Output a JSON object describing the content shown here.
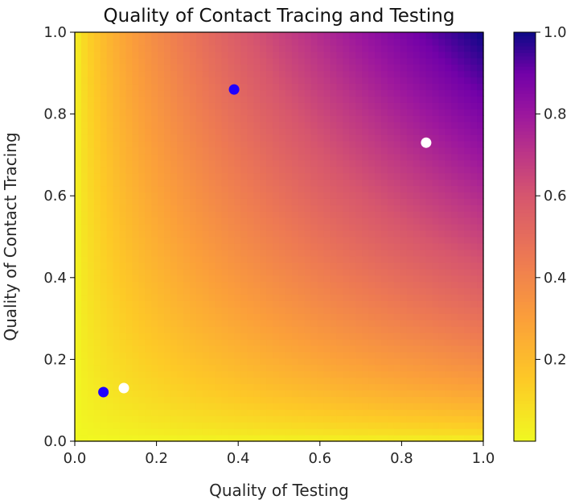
{
  "chart_data": {
    "type": "heatmap",
    "title": "Quality of Contact Tracing and Testing",
    "xlabel": "Quality of Testing",
    "ylabel": "Quality of Contact Tracing",
    "xlim": [
      0.0,
      1.0
    ],
    "ylim": [
      0.0,
      1.0
    ],
    "x_ticks": [
      "0.0",
      "0.2",
      "0.4",
      "0.6",
      "0.8",
      "1.0"
    ],
    "y_ticks": [
      "0.0",
      "0.2",
      "0.4",
      "0.6",
      "0.8",
      "1.0"
    ],
    "colormap": "plasma_r",
    "colorbar": {
      "range": [
        0.0,
        1.0
      ],
      "ticks": [
        "0.2",
        "0.4",
        "0.6",
        "0.8",
        "1.0"
      ],
      "placement": "right"
    },
    "field": "value ≈ (testing × tracing)^0.6",
    "points": [
      {
        "x": 0.07,
        "y": 0.12,
        "color": "#1f00ff"
      },
      {
        "x": 0.39,
        "y": 0.86,
        "color": "#1f00ff"
      },
      {
        "x": 0.12,
        "y": 0.13,
        "color": "#ffffff"
      },
      {
        "x": 0.86,
        "y": 0.73,
        "color": "#ffffff"
      }
    ],
    "grid": false
  }
}
